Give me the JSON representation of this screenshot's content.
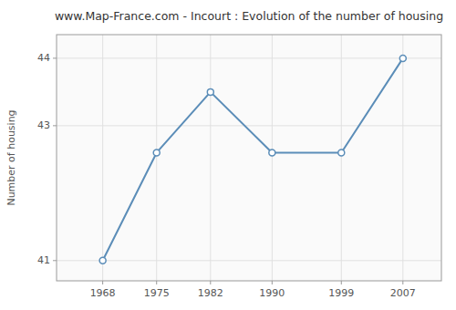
{
  "chart_data": {
    "type": "line",
    "title": "www.Map-France.com - Incourt : Evolution of the number of housing",
    "ylabel": "Number of housing",
    "x": [
      1968,
      1975,
      1982,
      1990,
      1999,
      2007
    ],
    "values": [
      41,
      42.6,
      43.5,
      42.6,
      42.6,
      44
    ],
    "color": "#5b8db8",
    "marker": "circle",
    "xlim": [
      1962,
      2012
    ],
    "ylim": [
      40.7,
      44.35
    ],
    "xticks": [
      1968,
      1975,
      1982,
      1990,
      1999,
      2007
    ],
    "yticks": [
      41,
      43,
      44
    ],
    "grid": true
  }
}
